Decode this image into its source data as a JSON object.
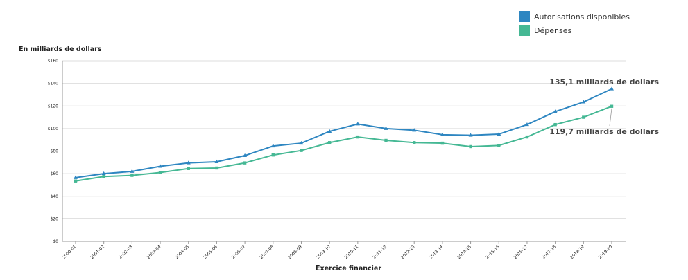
{
  "chart_data": {
    "type": "line",
    "ylabel": "En milliards de dollars",
    "xlabel": "Exercice financier",
    "ylim": [
      0,
      160
    ],
    "y_ticks": [
      0,
      20,
      40,
      60,
      80,
      100,
      120,
      140,
      160
    ],
    "y_tick_labels": [
      "$0",
      "$20",
      "$40",
      "$60",
      "$80",
      "$100",
      "$120",
      "$140",
      "$160"
    ],
    "categories": [
      "2000-01",
      "2001-02",
      "2002-03",
      "2003-04",
      "2004-05",
      "2005-06",
      "2006-07",
      "2007-08",
      "2008-09",
      "2009-10",
      "2010-11",
      "2011-12",
      "2012-13",
      "2013-14",
      "2014-15",
      "2015-16",
      "2016-17",
      "2017-18",
      "2018-19",
      "2019-20"
    ],
    "grid": true,
    "legend": "top-right",
    "series": [
      {
        "name": "Autorisations disponibles",
        "color": "#2e86c1",
        "marker": "triangle",
        "values": [
          56.5,
          60,
          62,
          66.5,
          69.5,
          70.5,
          76,
          84.5,
          87,
          97.5,
          104,
          100,
          98.5,
          94.5,
          94,
          95,
          103.5,
          115,
          123.5,
          135.1
        ]
      },
      {
        "name": "Dépenses",
        "color": "#45b894",
        "marker": "square",
        "values": [
          53.5,
          57.5,
          58.5,
          61,
          64.5,
          65,
          69.5,
          76.5,
          80.5,
          87.5,
          92.5,
          89.5,
          87.5,
          87,
          84,
          85,
          92.5,
          103.5,
          110,
          119.7
        ]
      }
    ],
    "annotations": [
      {
        "text": "135,1 milliards de dollars",
        "series": 0,
        "category": "2019-20"
      },
      {
        "text": "119,7 milliards de dollars",
        "series": 1,
        "category": "2019-20"
      }
    ]
  }
}
